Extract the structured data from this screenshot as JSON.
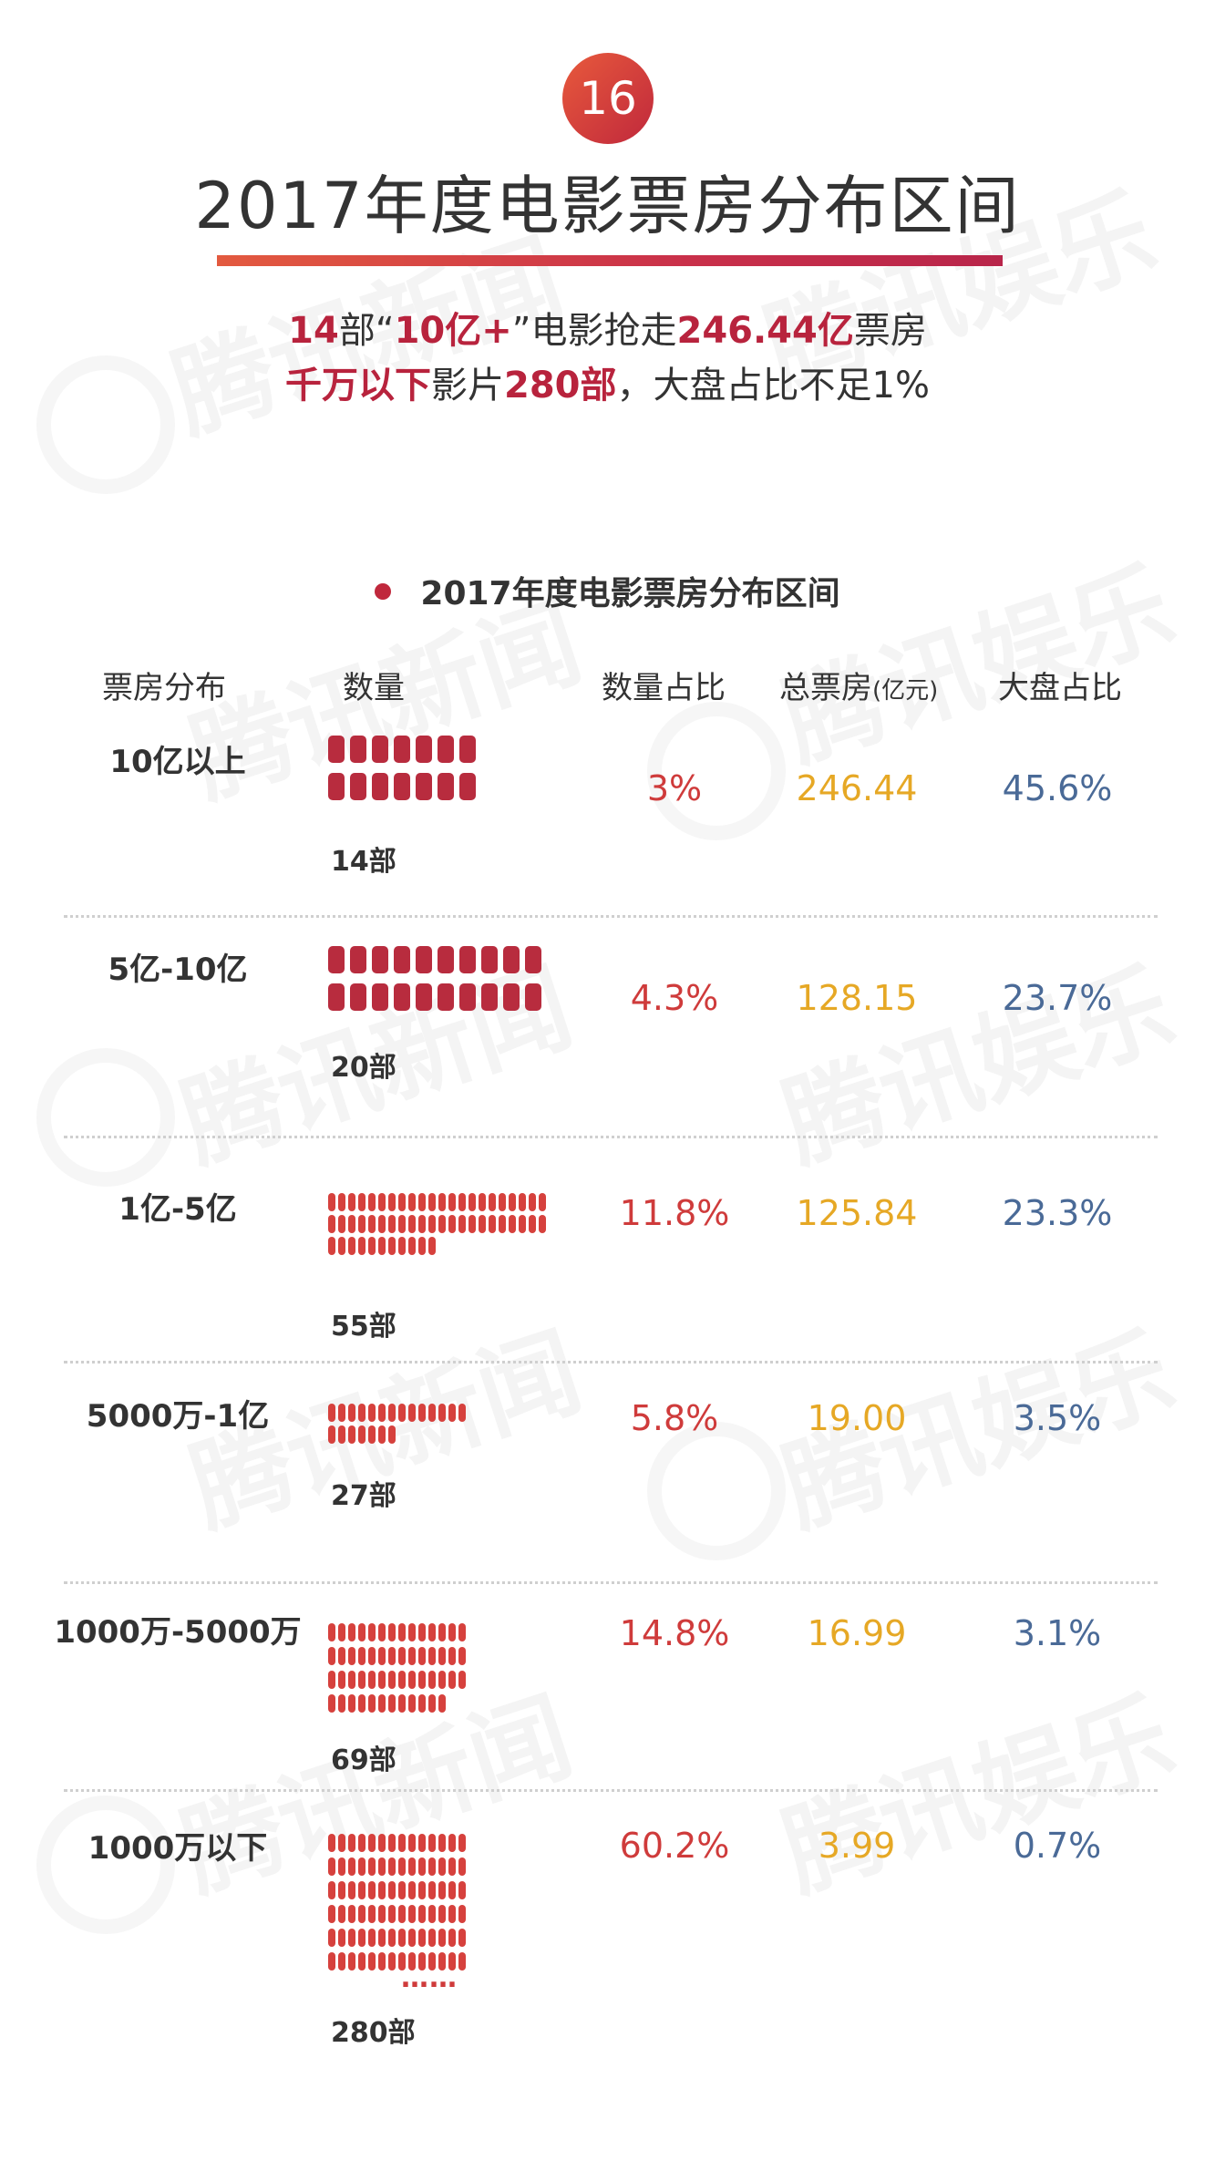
{
  "badge": "16",
  "title": "2017年度电影票房分布区间",
  "subtitle": {
    "line1": [
      {
        "text": "14",
        "hl": true
      },
      {
        "text": "部“",
        "hl": false
      },
      {
        "text": "10亿+",
        "hl": true
      },
      {
        "text": "”电影抢走",
        "hl": false
      },
      {
        "text": "246.44亿",
        "hl": true
      },
      {
        "text": "票房",
        "hl": false
      }
    ],
    "line2": [
      {
        "text": "千万以下",
        "hl": true
      },
      {
        "text": "影片",
        "hl": false
      },
      {
        "text": "280部",
        "hl": true
      },
      {
        "text": "，大盘占比不足1%",
        "hl": false
      }
    ]
  },
  "watermark": [
    "腾讯新闻",
    "腾讯娱乐"
  ],
  "chart_data": {
    "type": "table",
    "title": "2017年度电影票房分布区间",
    "columns": [
      "票房分布",
      "数量",
      "数量占比",
      "总票房",
      "(亿元)",
      "大盘占比"
    ],
    "rows": [
      {
        "range": "10亿以上",
        "count": 14,
        "count_label": "14部",
        "count_share": "3%",
        "total": "246.44",
        "market_share": "45.6%"
      },
      {
        "range": "5亿-10亿",
        "count": 20,
        "count_label": "20部",
        "count_share": "4.3%",
        "total": "128.15",
        "market_share": "23.7%"
      },
      {
        "range": "1亿-5亿",
        "count": 55,
        "count_label": "55部",
        "count_share": "11.8%",
        "total": "125.84",
        "market_share": "23.3%"
      },
      {
        "range": "5000万-1亿",
        "count": 27,
        "count_label": "27部",
        "count_share": "5.8%",
        "total": "19.00",
        "market_share": "3.5%"
      },
      {
        "range": "1000万-5000万",
        "count": 69,
        "count_label": "69部",
        "count_share": "14.8%",
        "total": "16.99",
        "market_share": "3.1%"
      },
      {
        "range": "1000万以下",
        "count": 280,
        "count_label": "280部",
        "count_share": "60.2%",
        "total": "3.99",
        "market_share": "0.7%",
        "ellipsis": "……"
      }
    ],
    "colors": {
      "dark_red": "#b82c3e",
      "red": "#d6413d"
    }
  }
}
